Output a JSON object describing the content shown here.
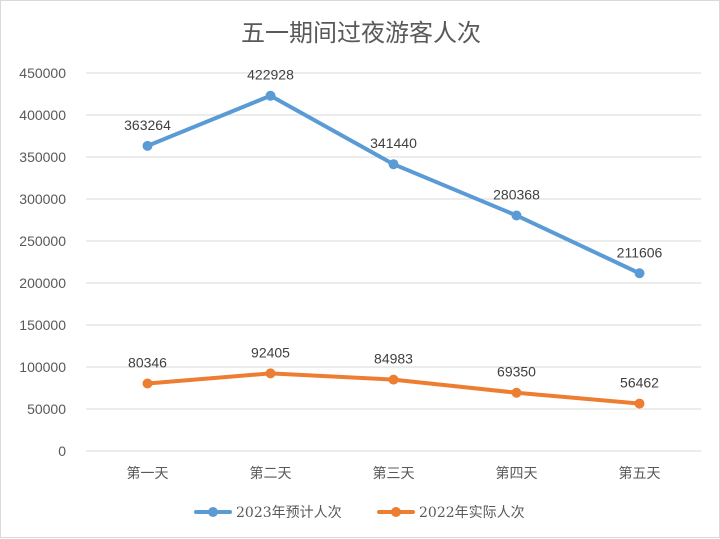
{
  "chart_data": {
    "type": "line",
    "title": "五一期间过夜游客人次",
    "categories": [
      "第一天",
      "第二天",
      "第三天",
      "第四天",
      "第五天"
    ],
    "series": [
      {
        "name": "2023年预计人次",
        "color": "#5b9bd5",
        "values": [
          363264,
          422928,
          341440,
          280368,
          211606
        ]
      },
      {
        "name": "2022年实际人次",
        "color": "#ed7d31",
        "values": [
          80346,
          92405,
          84983,
          69350,
          56462
        ]
      }
    ],
    "ylim": [
      0,
      450000
    ],
    "yticks": [
      "0",
      "50000",
      "100000",
      "150000",
      "200000",
      "250000",
      "300000",
      "350000",
      "400000",
      "450000"
    ],
    "grid": true,
    "legend": "bottom",
    "data_labels": true
  }
}
